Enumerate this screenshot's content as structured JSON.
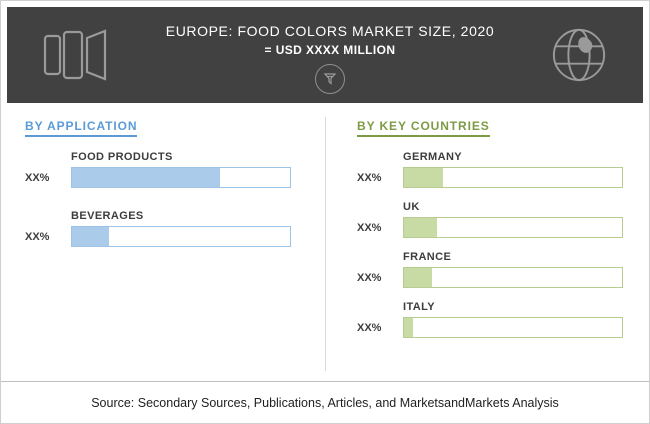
{
  "header": {
    "title": "EUROPE: FOOD COLORS MARKET SIZE, 2020",
    "subtitle": "= USD XXXX MILLION",
    "icons": {
      "left": "food-colors-bottles-icon",
      "center": "funnel-badge-icon",
      "right": "globe-icon"
    },
    "colors": {
      "band_bg": "#414141",
      "title": "#ffffff",
      "subtitle": "#ffffff"
    }
  },
  "chart_data": [
    {
      "type": "bar",
      "orientation": "horizontal",
      "title": "BY APPLICATION",
      "categories": [
        "FOOD PRODUCTS",
        "BEVERAGES"
      ],
      "value_labels": [
        "XX%",
        "XX%"
      ],
      "values": [
        68,
        17
      ],
      "values_note": "fill lengths estimated from pixels; on-screen labels are XX% placeholders",
      "xlim": [
        0,
        100
      ],
      "grid": false,
      "legend": false,
      "bar_fill": "#aacbea",
      "bar_border": "#9dc3e6",
      "title_color": "#5b9bd5"
    },
    {
      "type": "bar",
      "orientation": "horizontal",
      "title": "BY KEY COUNTRIES",
      "categories": [
        "GERMANY",
        "UK",
        "FRANCE",
        "ITALY"
      ],
      "value_labels": [
        "XX%",
        "XX%",
        "XX%",
        "XX%"
      ],
      "values": [
        18,
        15,
        13,
        4
      ],
      "values_note": "fill lengths estimated from pixels; on-screen labels are XX% placeholders",
      "xlim": [
        0,
        100
      ],
      "grid": false,
      "legend": false,
      "bar_fill": "#c9dba5",
      "bar_border": "#b6cc91",
      "title_color": "#7d9b44"
    }
  ],
  "footer": {
    "source": "Source: Secondary Sources, Publications, Articles, and MarketsandMarkets Analysis"
  }
}
